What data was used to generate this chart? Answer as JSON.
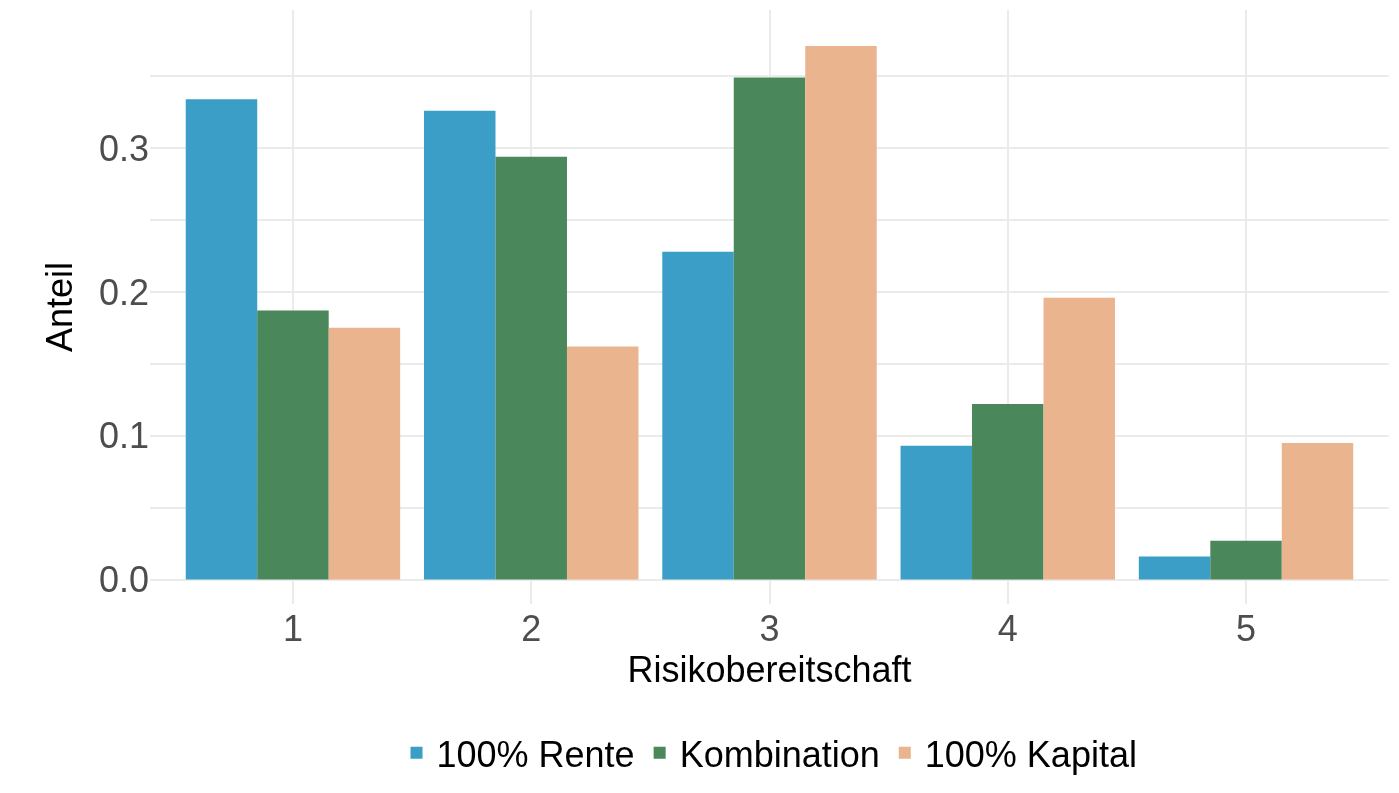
{
  "chart_data": {
    "type": "bar",
    "xlabel": "Risikobereitschaft",
    "ylabel": "Anteil",
    "categories": [
      "1",
      "2",
      "3",
      "4",
      "5"
    ],
    "series": [
      {
        "name": "100% Rente",
        "color": "#3b9ec6",
        "values": [
          0.334,
          0.326,
          0.228,
          0.093,
          0.016
        ]
      },
      {
        "name": "Kombination",
        "color": "#4a875a",
        "values": [
          0.187,
          0.294,
          0.349,
          0.122,
          0.027
        ]
      },
      {
        "name": "100% Kapital",
        "color": "#e9b48e",
        "values": [
          0.175,
          0.162,
          0.371,
          0.196,
          0.095
        ]
      }
    ],
    "ylim": [
      -0.017,
      0.396
    ],
    "yticks": [
      {
        "value": 0,
        "label": "0.0"
      },
      {
        "value": 0.05,
        "label": null
      },
      {
        "value": 0.1,
        "label": "0.1"
      },
      {
        "value": 0.15,
        "label": null
      },
      {
        "value": 0.2,
        "label": "0.2"
      },
      {
        "value": 0.25,
        "label": null
      },
      {
        "value": 0.3,
        "label": "0.3"
      },
      {
        "value": 0.35,
        "label": null
      }
    ],
    "grid": true,
    "legend": "bottom"
  }
}
